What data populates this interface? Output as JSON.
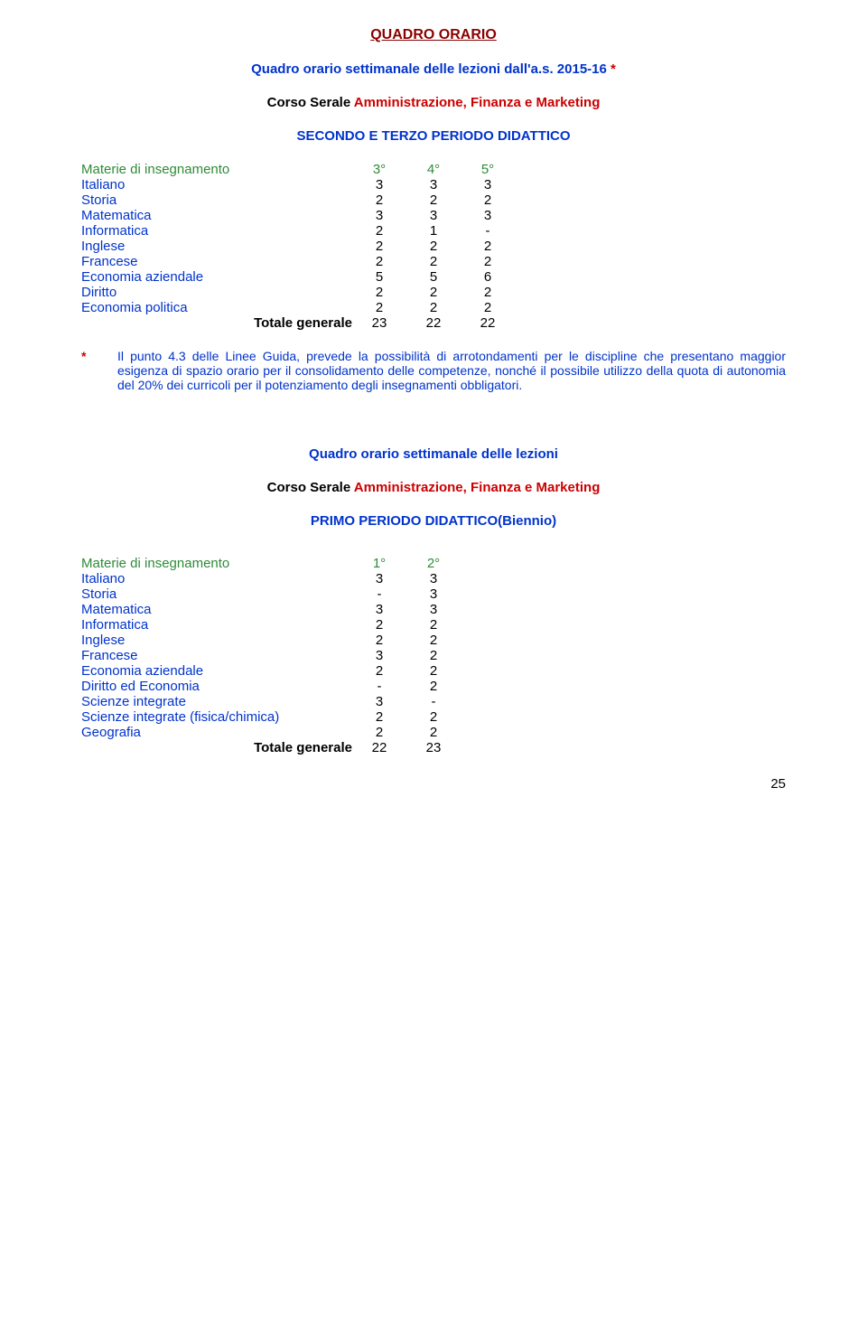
{
  "colors": {
    "darkred": "#8b0000",
    "blue": "#0033cc",
    "red": "#cc0000",
    "green": "#2e8b38",
    "black": "#000000"
  },
  "fontsize": {
    "title": 16,
    "body": 15,
    "note": 14
  },
  "titleMain": "QUADRO ORARIO",
  "subtitle": {
    "pre": "Quadro orario settimanale delle lezioni dall'a.s. 2015-16 ",
    "star": "*"
  },
  "courseLine": {
    "pre": "Corso Serale  ",
    "name": "Amministrazione, Finanza e Marketing"
  },
  "period1": "SECONDO E TERZO PERIODO DIDATTICO",
  "table1": {
    "headerLabel": "Materie di insegnamento",
    "headerCols": [
      "3°",
      "4°",
      "5°"
    ],
    "rows": [
      {
        "label": "Italiano",
        "vals": [
          "3",
          "3",
          "3"
        ]
      },
      {
        "label": "Storia",
        "vals": [
          "2",
          "2",
          "2"
        ]
      },
      {
        "label": "Matematica",
        "vals": [
          "3",
          "3",
          "3"
        ]
      },
      {
        "label": "Informatica",
        "vals": [
          "2",
          "1",
          "-"
        ]
      },
      {
        "label": "Inglese",
        "vals": [
          "2",
          "2",
          "2"
        ]
      },
      {
        "label": "Francese",
        "vals": [
          "2",
          "2",
          "2"
        ]
      },
      {
        "label": "Economia aziendale",
        "vals": [
          "5",
          "5",
          "6"
        ]
      },
      {
        "label": "Diritto",
        "vals": [
          "2",
          "2",
          "2"
        ]
      },
      {
        "label": "Economia politica",
        "vals": [
          "2",
          "2",
          "2"
        ]
      }
    ],
    "totalLabel": "Totale generale",
    "totalVals": [
      "23",
      "22",
      "22"
    ]
  },
  "note": {
    "star": "*",
    "text": "Il punto 4.3 delle Linee Guida, prevede la possibilità di arrotondamenti  per le discipline che presentano maggior esigenza di spazio orario per il consolidamento delle competenze,  nonché      il possibile utilizzo della quota di autonomia del 20% dei curricoli per il      potenziamento          degli insegnamenti obbligatori."
  },
  "subtitle2": "Quadro orario settimanale delle lezioni",
  "period2": "PRIMO PERIODO DIDATTICO(Biennio)",
  "table2": {
    "headerLabel": "Materie di insegnamento",
    "headerCols": [
      "1°",
      "2°"
    ],
    "rows": [
      {
        "label": "Italiano",
        "vals": [
          "3",
          "3"
        ]
      },
      {
        "label": "Storia",
        "vals": [
          "-",
          "3"
        ]
      },
      {
        "label": "Matematica",
        "vals": [
          "3",
          "3"
        ]
      },
      {
        "label": "Informatica",
        "vals": [
          "2",
          "2"
        ]
      },
      {
        "label": "Inglese",
        "vals": [
          "2",
          "2"
        ]
      },
      {
        "label": "Francese",
        "vals": [
          "3",
          "2"
        ]
      },
      {
        "label": "Economia aziendale",
        "vals": [
          "2",
          "2"
        ]
      },
      {
        "label": "Diritto ed Economia",
        "vals": [
          "-",
          "2"
        ]
      },
      {
        "label": "Scienze integrate",
        "vals": [
          "3",
          "-"
        ]
      },
      {
        "label": "Scienze integrate (fisica/chimica)",
        "vals": [
          "2",
          "2"
        ]
      },
      {
        "label": "Geografia",
        "vals": [
          "2",
          "2"
        ]
      }
    ],
    "totalLabel": "Totale generale",
    "totalVals": [
      "22",
      "23"
    ]
  },
  "pageNumber": "25"
}
